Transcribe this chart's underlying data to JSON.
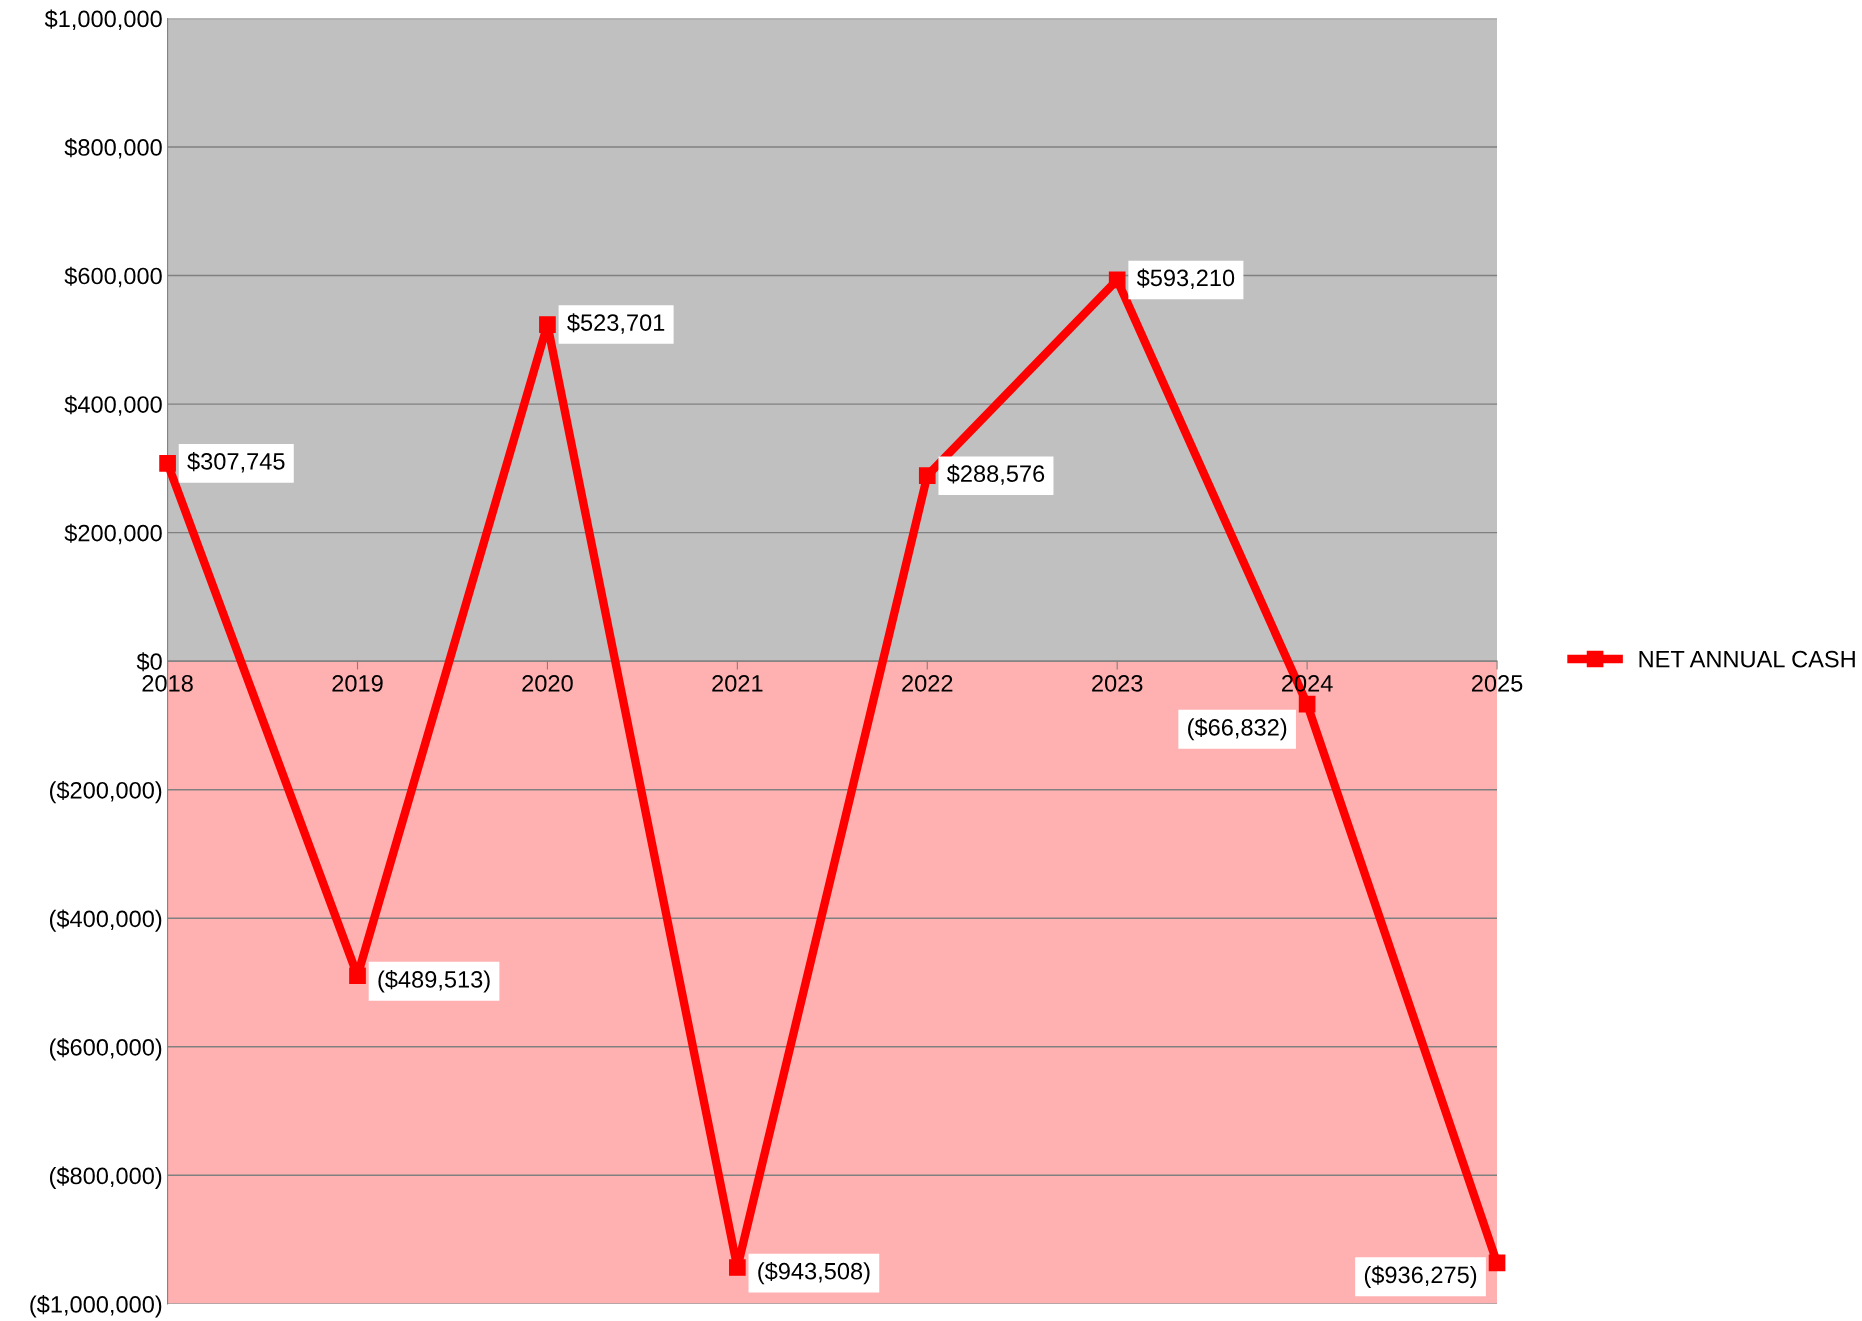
{
  "chart_data": {
    "type": "line",
    "categories": [
      "2018",
      "2019",
      "2020",
      "2021",
      "2022",
      "2023",
      "2024",
      "2025"
    ],
    "series": [
      {
        "name": "NET ANNUAL CASH",
        "color": "#ff0000",
        "values": [
          307745,
          -489513,
          523701,
          -943508,
          288576,
          593210,
          -66832,
          -936275
        ],
        "value_labels": [
          "$307,745",
          "($489,513)",
          "$523,701",
          "($943,508)",
          "$288,576",
          "$593,210",
          "($66,832)",
          "($936,275)"
        ]
      }
    ],
    "ylim": [
      -1000000,
      1000000
    ],
    "yticks": [
      {
        "value": -1000000,
        "label": "($1,000,000)"
      },
      {
        "value": -800000,
        "label": "($800,000)"
      },
      {
        "value": -600000,
        "label": "($600,000)"
      },
      {
        "value": -400000,
        "label": "($400,000)"
      },
      {
        "value": -200000,
        "label": "($200,000)"
      },
      {
        "value": 0,
        "label": "$0"
      },
      {
        "value": 200000,
        "label": "$200,000"
      },
      {
        "value": 400000,
        "label": "$400,000"
      },
      {
        "value": 600000,
        "label": "$600,000"
      },
      {
        "value": 800000,
        "label": "$800,000"
      },
      {
        "value": 1000000,
        "label": "$1,000,000"
      }
    ],
    "bands": [
      {
        "axis": "y",
        "from": 0,
        "to": 1000000,
        "color": "#c0c0c0"
      },
      {
        "axis": "y",
        "from": -1000000,
        "to": 0,
        "color": "#ffb0b0"
      }
    ],
    "grid": "y",
    "legend": "right",
    "marker": "square",
    "line_style": "solid"
  }
}
